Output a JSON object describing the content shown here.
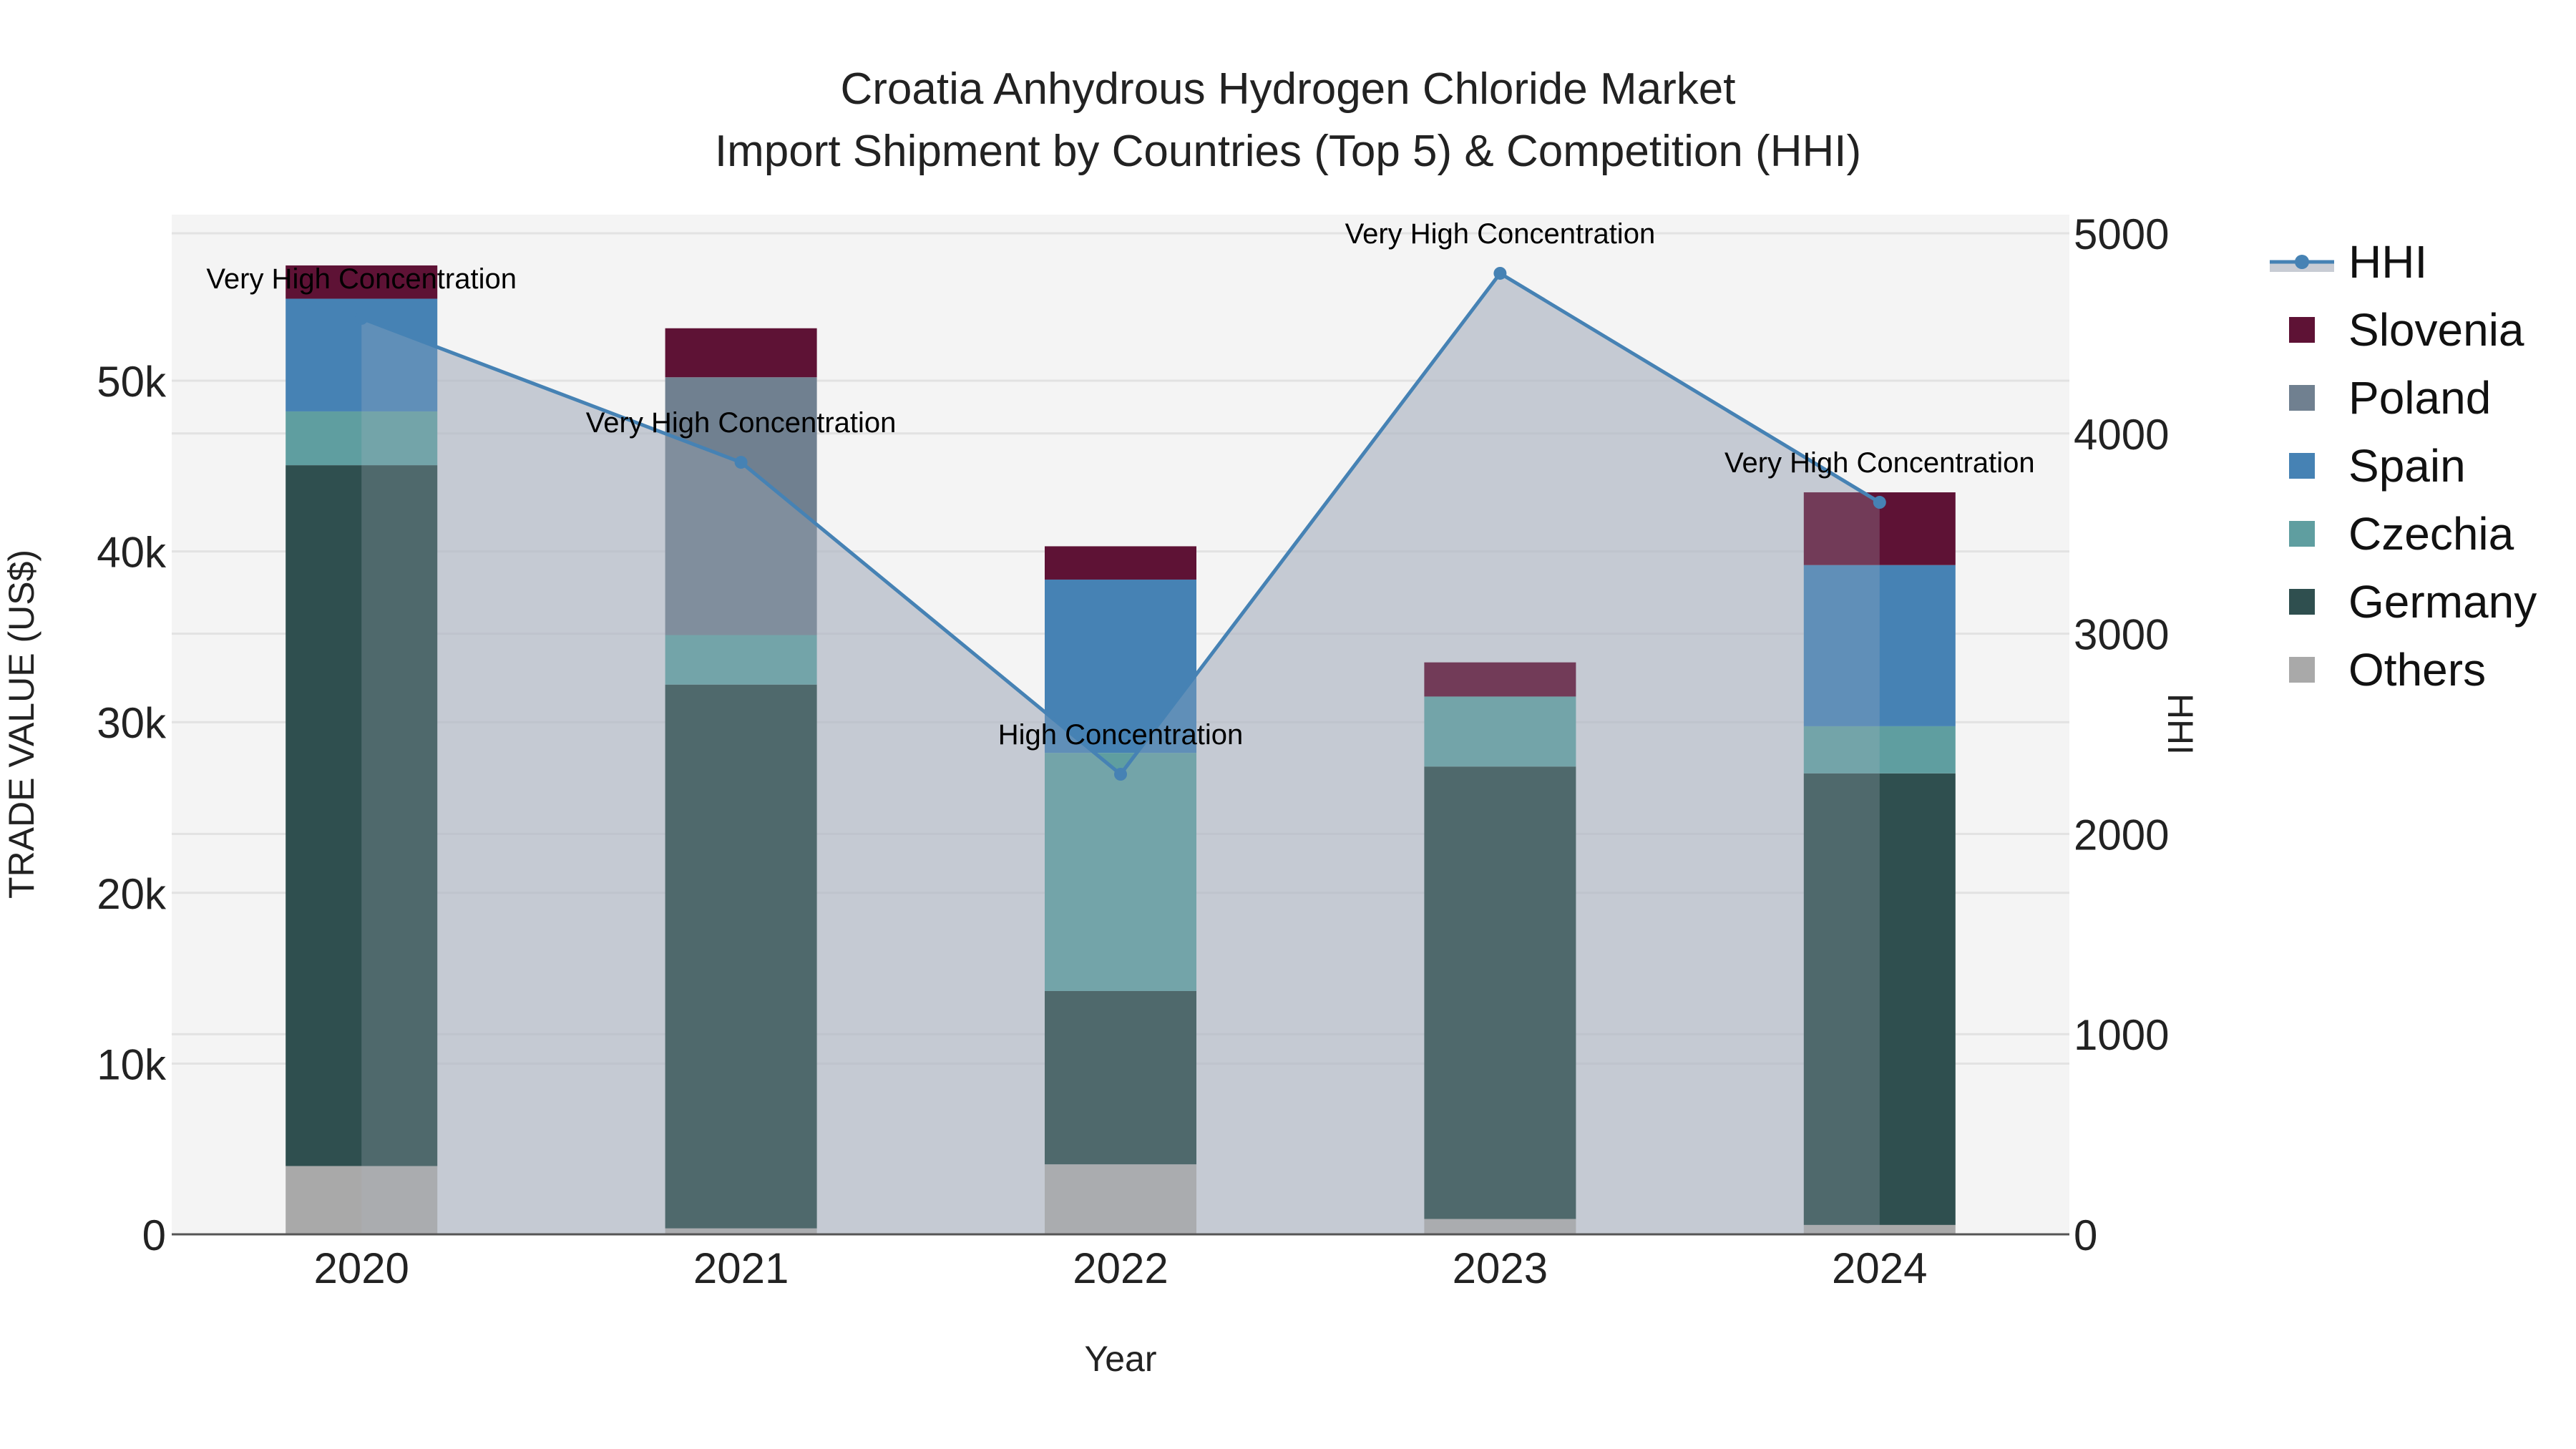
{
  "title": {
    "line1": "Croatia Anhydrous Hydrogen Chloride Market",
    "line2": "Import Shipment by Countries (Top 5) & Competition (HHI)"
  },
  "axes": {
    "x_label": "Year",
    "y_left_label": "TRADE VALUE (US$)",
    "y_right_label": "HHI",
    "y_left_ticks": [
      {
        "value": 0,
        "label": "0"
      },
      {
        "value": 10000,
        "label": "10k"
      },
      {
        "value": 20000,
        "label": "20k"
      },
      {
        "value": 30000,
        "label": "30k"
      },
      {
        "value": 40000,
        "label": "40k"
      },
      {
        "value": 50000,
        "label": "50k"
      }
    ],
    "y_right_ticks": [
      {
        "value": 0,
        "label": "0"
      },
      {
        "value": 1000,
        "label": "1000"
      },
      {
        "value": 2000,
        "label": "2000"
      },
      {
        "value": 3000,
        "label": "3000"
      },
      {
        "value": 4000,
        "label": "4000"
      },
      {
        "value": 5000,
        "label": "5000"
      }
    ]
  },
  "legend": {
    "items": [
      {
        "name": "HHI",
        "type": "line",
        "color": "#4682b4",
        "fill": "#c8ccd4"
      },
      {
        "name": "Slovenia",
        "type": "box",
        "color": "#5e1235"
      },
      {
        "name": "Poland",
        "type": "box",
        "color": "#708090"
      },
      {
        "name": "Spain",
        "type": "box",
        "color": "#4682b4"
      },
      {
        "name": "Czechia",
        "type": "box",
        "color": "#5f9ea0"
      },
      {
        "name": "Germany",
        "type": "box",
        "color": "#2f4f4f"
      },
      {
        "name": "Others",
        "type": "box",
        "color": "#a9a9a9"
      }
    ]
  },
  "colors": {
    "plot_bg": "#f4f4f4",
    "grid": "#e2e2e2",
    "hhi_line": "#4682b4",
    "hhi_fill": "rgba(176,184,196,0.6)",
    "axis_line": "#555555"
  },
  "chart_data": {
    "type": "bar",
    "stacked": true,
    "title": "Croatia Anhydrous Hydrogen Chloride Market\nImport Shipment by Countries (Top 5) & Competition (HHI)",
    "xlabel": "Year",
    "ylabel": "TRADE VALUE (US$)",
    "y2label": "HHI",
    "categories": [
      "2020",
      "2021",
      "2022",
      "2023",
      "2024"
    ],
    "ylim": [
      0,
      59700
    ],
    "y2lim": [
      0,
      5090
    ],
    "grid": true,
    "legend_position": "right",
    "series": [
      {
        "name": "Others",
        "color": "#a9a9a9",
        "values": [
          4000,
          350,
          4100,
          900,
          550
        ]
      },
      {
        "name": "Germany",
        "color": "#2f4f4f",
        "values": [
          41050,
          31850,
          10150,
          26500,
          26450
        ]
      },
      {
        "name": "Czechia",
        "color": "#5f9ea0",
        "values": [
          3150,
          2900,
          13950,
          4100,
          2760
        ]
      },
      {
        "name": "Spain",
        "color": "#4682b4",
        "values": [
          6600,
          0,
          10150,
          0,
          9440
        ]
      },
      {
        "name": "Poland",
        "color": "#708090",
        "values": [
          0,
          15100,
          0,
          0,
          0
        ]
      },
      {
        "name": "Slovenia",
        "color": "#5e1235",
        "values": [
          1950,
          2870,
          1950,
          2000,
          4260
        ]
      }
    ],
    "line_series": {
      "name": "HHI",
      "axis": "y2",
      "type": "area-line",
      "color": "#4682b4",
      "values": [
        4575,
        3856,
        2298,
        4800,
        3656
      ],
      "annotations": [
        "Very High Concentration",
        "Very High Concentration",
        "High Concentration",
        "Very High Concentration",
        "Very High Concentration"
      ]
    }
  }
}
